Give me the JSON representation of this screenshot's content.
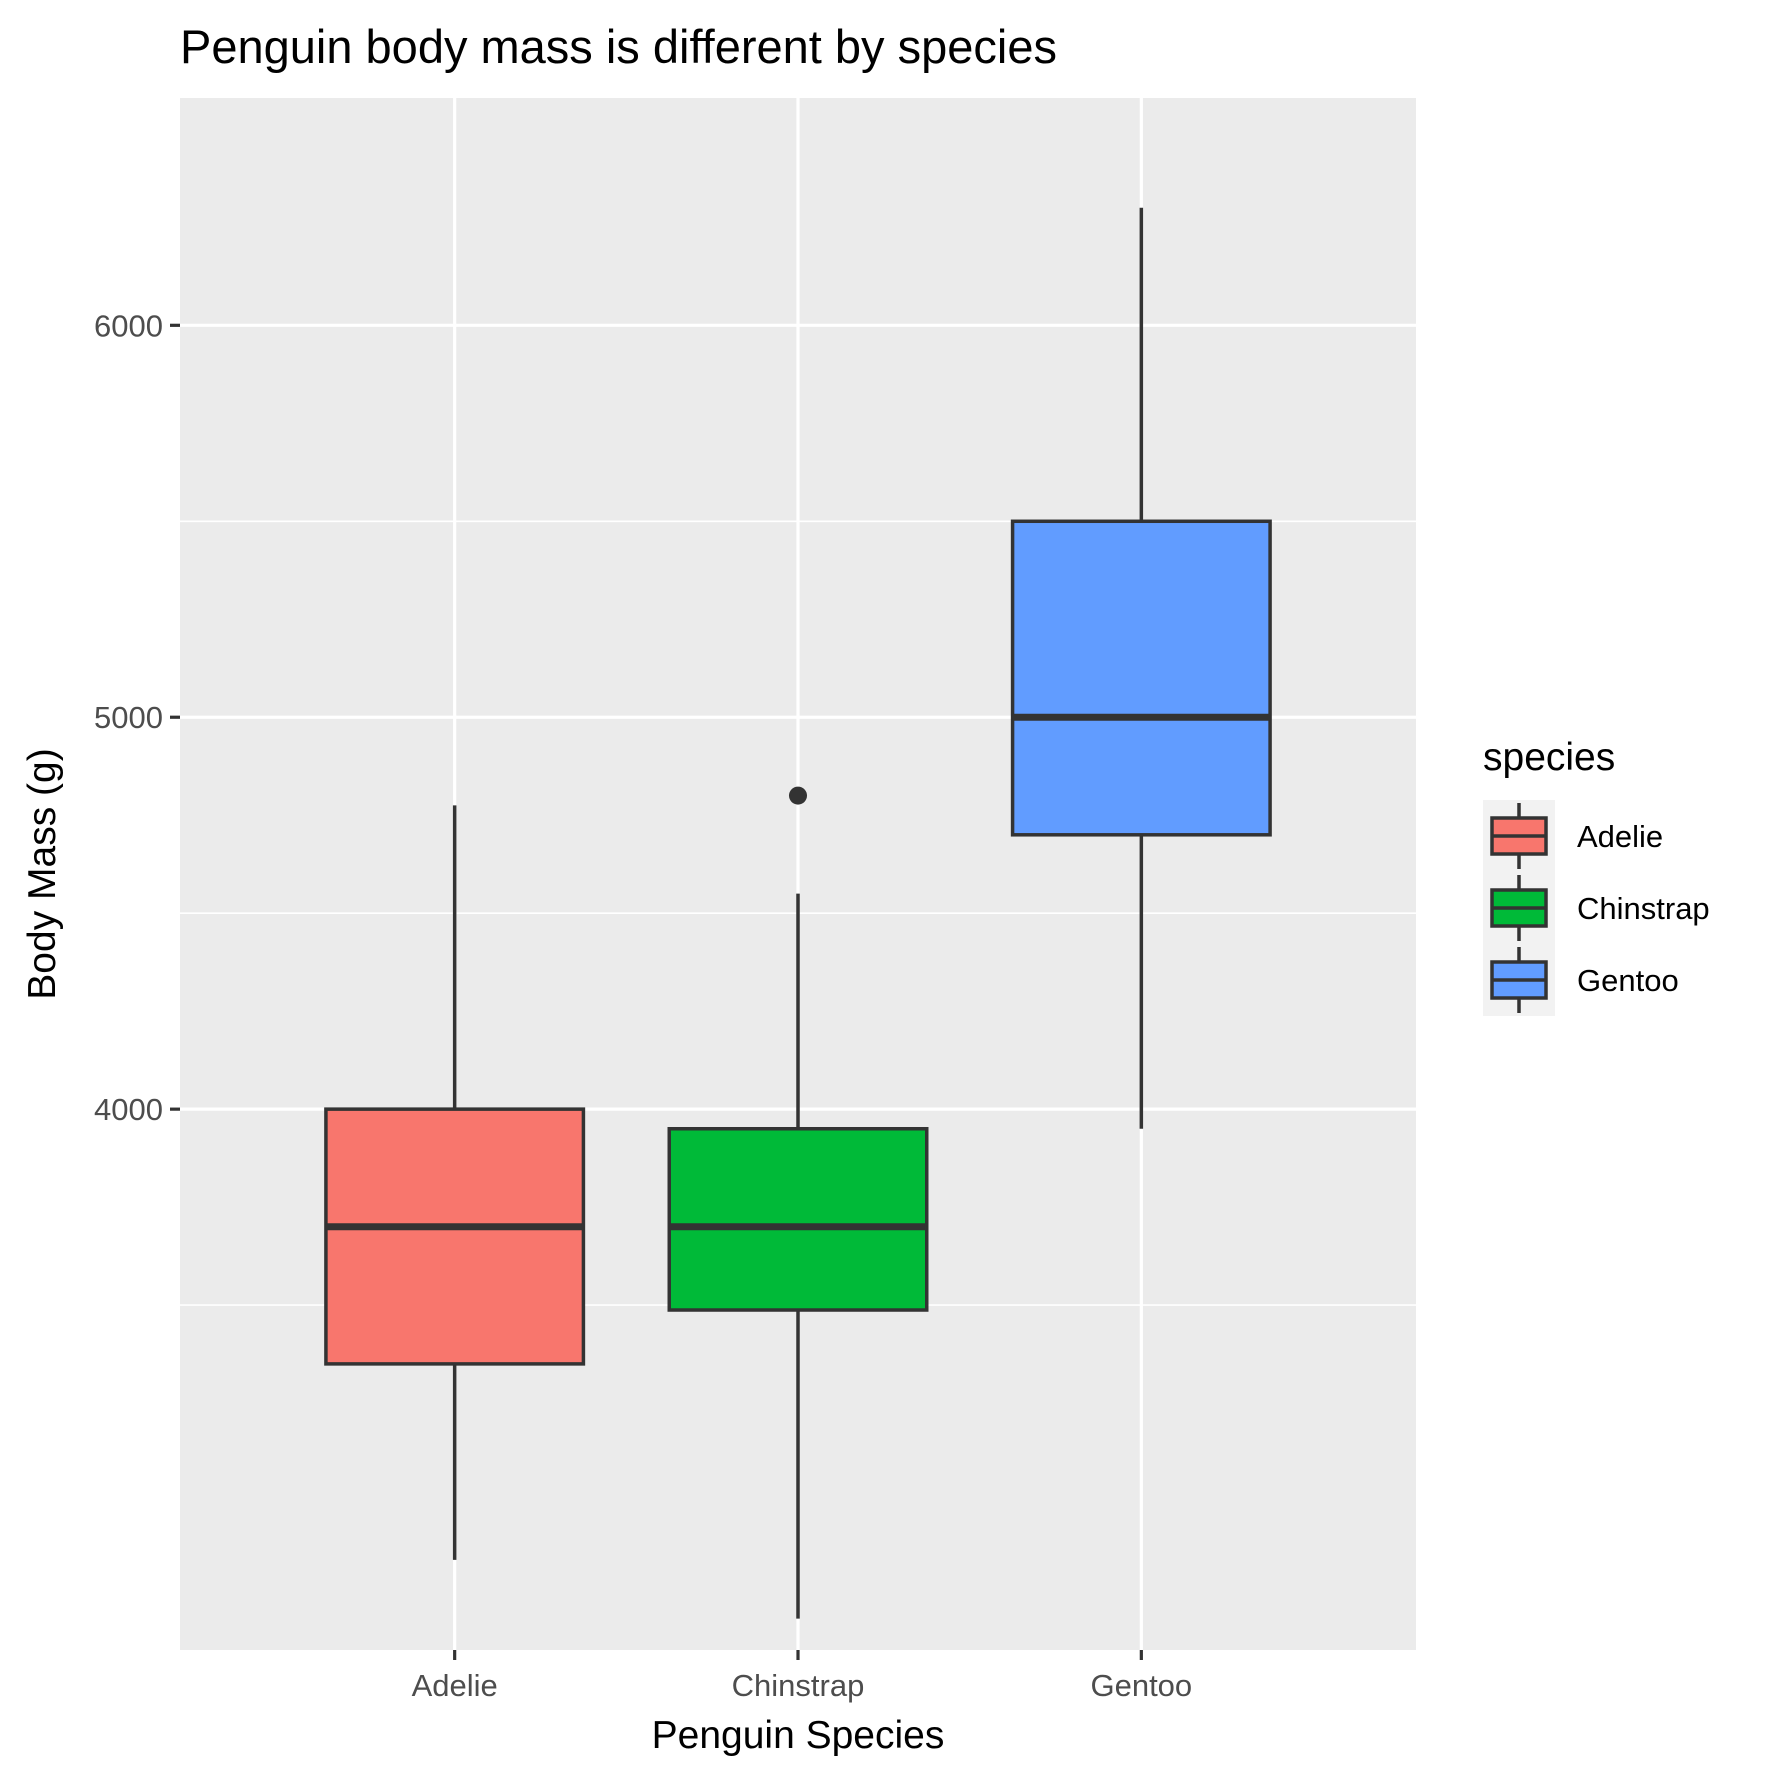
{
  "chart_data": {
    "type": "boxplot",
    "title": "Penguin body mass is different by species",
    "xlabel": "Penguin Species",
    "ylabel": "Body Mass (g)",
    "categories": [
      "Adelie",
      "Chinstrap",
      "Gentoo"
    ],
    "ylim": [
      2620,
      6580
    ],
    "y_major_ticks": [
      4000,
      5000,
      6000
    ],
    "y_major_tick_labels": [
      "4000",
      "5000",
      "6000"
    ],
    "y_minor_ticks": [
      3500,
      4500,
      5500
    ],
    "grid": true,
    "boxes": [
      {
        "category": "Adelie",
        "whisker_low": 2850,
        "q1": 3350,
        "median": 3700,
        "q3": 4000,
        "whisker_high": 4775,
        "outliers": []
      },
      {
        "category": "Chinstrap",
        "whisker_low": 2700,
        "q1": 3487.5,
        "median": 3700,
        "q3": 3950,
        "whisker_high": 4550,
        "outliers": [
          4800
        ]
      },
      {
        "category": "Gentoo",
        "whisker_low": 3950,
        "q1": 4700,
        "median": 5000,
        "q3": 5500,
        "whisker_high": 6300,
        "outliers": []
      }
    ],
    "legend": {
      "title": "species",
      "placement": "right",
      "entries": [
        {
          "label": "Adelie",
          "color": "#F8766D"
        },
        {
          "label": "Chinstrap",
          "color": "#00BA38"
        },
        {
          "label": "Gentoo",
          "color": "#619CFF"
        }
      ]
    }
  }
}
